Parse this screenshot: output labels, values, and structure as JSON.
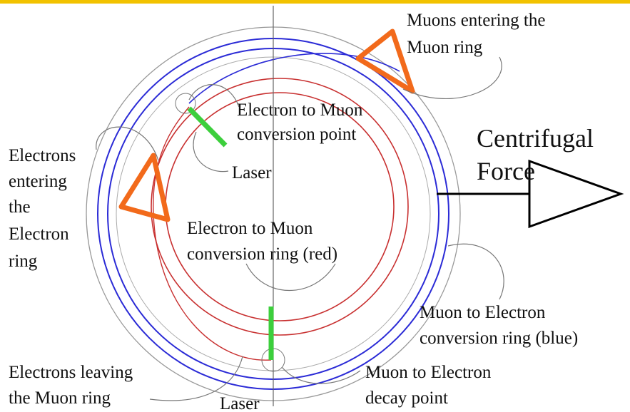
{
  "labels": [
    {
      "lines": [
        "Muons entering the",
        "Muon ring"
      ]
    },
    {
      "lines": [
        "Electron to Muon",
        "conversion point"
      ]
    },
    {
      "lines": [
        "Laser"
      ]
    },
    {
      "lines": [
        "Centrifugal",
        "Force"
      ]
    },
    {
      "lines": [
        "Electrons",
        "entering",
        "the",
        "Electron",
        "ring"
      ]
    },
    {
      "lines": [
        "Electron to Muon",
        "conversion ring (red)"
      ]
    },
    {
      "lines": [
        "Muon to Electron",
        "conversion ring (blue)"
      ]
    },
    {
      "lines": [
        "Electrons leaving",
        "the Muon ring"
      ]
    },
    {
      "lines": [
        "Laser"
      ]
    },
    {
      "lines": [
        "Muon to Electron",
        "decay point"
      ]
    }
  ]
}
